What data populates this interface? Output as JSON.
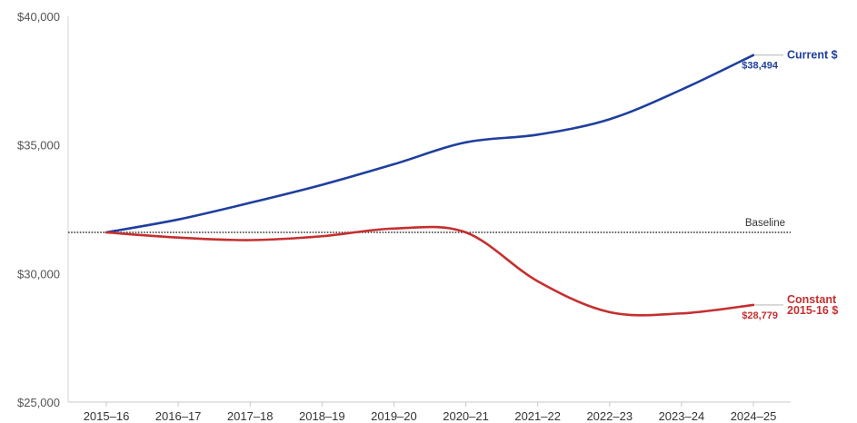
{
  "chart_data": {
    "type": "line",
    "title": "",
    "xlabel": "",
    "ylabel": "",
    "categories": [
      "2015–16",
      "2016–17",
      "2017–18",
      "2018–19",
      "2019–20",
      "2020–21",
      "2021–22",
      "2022–23",
      "2023–24",
      "2024–25"
    ],
    "ylim": [
      25000,
      40000
    ],
    "yticks": [
      25000,
      30000,
      35000,
      40000
    ],
    "ytick_labels": [
      "$25,000",
      "$30,000",
      "$35,000",
      "$40,000"
    ],
    "grid": false,
    "legend": "none",
    "baseline": {
      "label": "Baseline",
      "value": 31600
    },
    "series": [
      {
        "name_lines": [
          "Current $"
        ],
        "color": "#1f3f9e",
        "values": [
          31600,
          32100,
          32750,
          33450,
          34250,
          35100,
          35400,
          36000,
          37150,
          38494
        ],
        "end_label": "$38,494"
      },
      {
        "name_lines": [
          "Constant",
          "2015-16 $"
        ],
        "color": "#c62f2f",
        "values": [
          31600,
          31400,
          31300,
          31450,
          31750,
          31600,
          29700,
          28500,
          28450,
          28779
        ],
        "end_label": "$28,779"
      }
    ]
  }
}
